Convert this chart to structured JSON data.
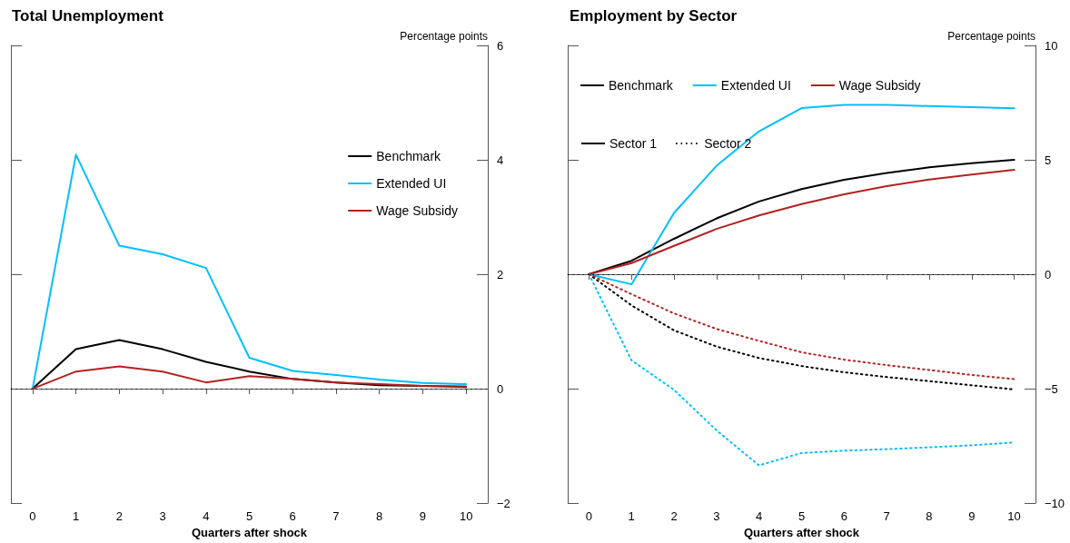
{
  "chart_data": [
    {
      "type": "line",
      "title": "Total Unemployment",
      "xlabel": "Quarters after shock",
      "ylabel": "Percentage points",
      "x": [
        0,
        1,
        2,
        3,
        4,
        5,
        6,
        7,
        8,
        9,
        10
      ],
      "series": [
        {
          "name": "Benchmark",
          "color": "#000000",
          "values": [
            0,
            0.69,
            0.85,
            0.69,
            0.47,
            0.3,
            0.17,
            0.11,
            0.06,
            0.05,
            0.03
          ]
        },
        {
          "name": "Extended UI",
          "color": "#00bfff",
          "values": [
            0,
            4.09,
            2.5,
            2.35,
            2.11,
            0.54,
            0.31,
            0.24,
            0.16,
            0.1,
            0.08
          ]
        },
        {
          "name": "Wage Subsidy",
          "color": "#b22222",
          "values": [
            0,
            0.3,
            0.39,
            0.3,
            0.11,
            0.22,
            0.17,
            0.11,
            0.08,
            0.05,
            0.04
          ]
        }
      ],
      "xlim": [
        -0.5,
        10.5
      ],
      "xticks": [
        0,
        1,
        2,
        3,
        4,
        5,
        6,
        7,
        8,
        9,
        10
      ],
      "ylim": [
        -2,
        6
      ],
      "yticks": [
        {
          "value": -2,
          "label": "−2"
        },
        0,
        2,
        4,
        6
      ],
      "ref_lines": [
        {
          "axis": "y",
          "value": 0,
          "color": "#000000",
          "line_style": "dotted"
        }
      ],
      "legend": "right",
      "grid": false,
      "marker": "none",
      "line_style": "solid"
    },
    {
      "type": "line",
      "title": "Employment by Sector",
      "xlabel": "Quarters after shock",
      "ylabel": "Percentage points",
      "x": [
        0,
        1,
        2,
        3,
        4,
        5,
        6,
        7,
        8,
        9,
        10
      ],
      "series": [
        {
          "name": "Benchmark",
          "color": "#000000",
          "line_style": "solid",
          "values": [
            0,
            0.59,
            1.55,
            2.44,
            3.18,
            3.72,
            4.13,
            4.43,
            4.67,
            4.85,
            5.0
          ]
        },
        {
          "name": "Extended UI",
          "color": "#00bfff",
          "line_style": "solid",
          "values": [
            0,
            -0.44,
            2.68,
            4.74,
            6.25,
            7.26,
            7.4,
            7.4,
            7.35,
            7.3,
            7.25
          ]
        },
        {
          "name": "Wage Subsidy",
          "color": "#b22222",
          "line_style": "solid",
          "values": [
            0,
            0.49,
            1.24,
            1.98,
            2.57,
            3.07,
            3.49,
            3.85,
            4.14,
            4.36,
            4.56
          ]
        },
        {
          "color": "#000000",
          "line_style": "dotted",
          "values": [
            0,
            -1.36,
            -2.45,
            -3.16,
            -3.66,
            -4.01,
            -4.28,
            -4.49,
            -4.67,
            -4.85,
            -5.03
          ]
        },
        {
          "color": "#00bfff",
          "line_style": "dotted",
          "values": [
            0,
            -3.76,
            -5.05,
            -6.82,
            -8.35,
            -7.81,
            -7.71,
            -7.64,
            -7.56,
            -7.47,
            -7.35
          ]
        },
        {
          "color": "#b22222",
          "line_style": "dotted",
          "values": [
            0,
            -0.87,
            -1.71,
            -2.39,
            -2.91,
            -3.41,
            -3.73,
            -3.97,
            -4.18,
            -4.4,
            -4.58
          ]
        }
      ],
      "annotations": [
        "Sector 1",
        "Sector 2"
      ],
      "xlim": [
        -0.5,
        10.5
      ],
      "xticks": [
        0,
        1,
        2,
        3,
        4,
        5,
        6,
        7,
        8,
        9,
        10
      ],
      "ylim": [
        -10,
        10
      ],
      "yticks": [
        {
          "value": -10,
          "label": "−10"
        },
        {
          "value": -5,
          "label": "−5"
        },
        0,
        5,
        10
      ],
      "ref_lines": [
        {
          "axis": "y",
          "value": 0,
          "color": "#000000",
          "line_style": "dotted"
        }
      ],
      "legend": "top",
      "grid": false,
      "marker": "none"
    }
  ]
}
